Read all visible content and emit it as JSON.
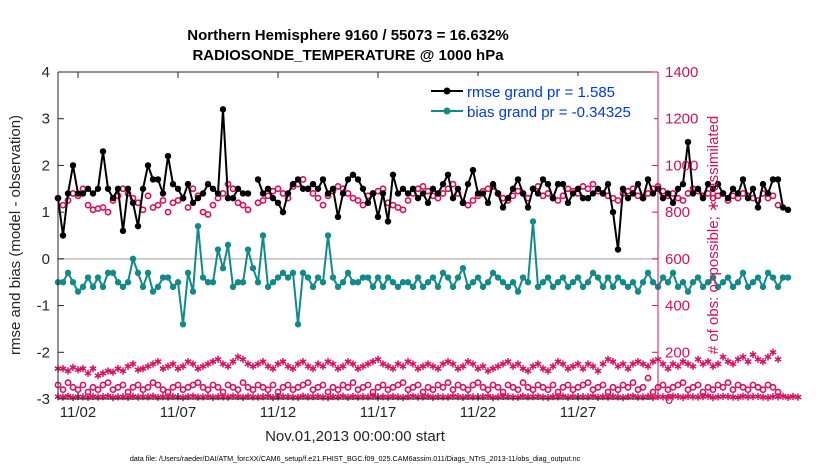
{
  "chart_data": {
    "type": "line",
    "title": "Northern Hemisphere 9160 / 55073 = 16.632%",
    "subtitle": "RADIOSONDE_TEMPERATURE @ 1000 hPa",
    "xlabel": "Nov.01,2013 00:00:00 start",
    "ylabel_left": "rmse and bias (model - observation)",
    "ylabel_right": "# of obs: o=possible; ∗=assimilated",
    "footer": "data file: /Users/raeder/DAI/ATM_forcXX/CAM6_setup/f.e21.FHIST_BGC.f09_025.CAM6assim.011/Diags_NTrS_2013-11/obs_diag_output.nc",
    "x_ticks": [
      {
        "day": 2,
        "label": "11/02"
      },
      {
        "day": 7,
        "label": "11/07"
      },
      {
        "day": 12,
        "label": "11/12"
      },
      {
        "day": 17,
        "label": "11/17"
      },
      {
        "day": 22,
        "label": "11/22"
      },
      {
        "day": 27,
        "label": "11/27"
      }
    ],
    "xlim_days": [
      1.0,
      31.0
    ],
    "y_left_ticks": [
      "-3",
      "-2",
      "-1",
      "0",
      "1",
      "2",
      "3",
      "4"
    ],
    "y_left_lim": [
      -3,
      4
    ],
    "y_right_ticks": [
      "0",
      "200",
      "400",
      "600",
      "800",
      "1000",
      "1200",
      "1400"
    ],
    "y_right_lim": [
      0,
      1400
    ],
    "zero_line": 0,
    "legend": {
      "position": "top-right",
      "entries": [
        {
          "label": "rmse grand pr = 1.585",
          "series": "rmse"
        },
        {
          "label": "bias grand pr = -0.34325",
          "series": "bias"
        }
      ]
    },
    "colors": {
      "rmse": "#000000",
      "bias": "#138a8a",
      "obs": "#d6105f",
      "axis": "#262626",
      "legend_text": "#0039e6",
      "zero": "#bfbfbf"
    },
    "series": [
      {
        "name": "rmse",
        "axis": "left",
        "x_start_day": 1.0,
        "dx_days": 0.25,
        "values": [
          1.3,
          0.5,
          1.4,
          2.0,
          1.4,
          1.4,
          1.5,
          1.4,
          1.5,
          2.3,
          1.5,
          1.3,
          1.5,
          0.6,
          1.5,
          1.2,
          0.7,
          1.5,
          2.0,
          1.7,
          1.7,
          1.4,
          2.2,
          1.6,
          1.5,
          1.3,
          1.6,
          1.2,
          1.3,
          1.4,
          1.6,
          1.5,
          1.4,
          3.2,
          1.3,
          1.3,
          1.5,
          1.4,
          1.4,
          null,
          1.7,
          1.4,
          1.5,
          1.3,
          1.2,
          1.0,
          1.4,
          1.6,
          1.7,
          1.5,
          1.5,
          1.6,
          1.5,
          1.7,
          1.4,
          1.5,
          0.9,
          1.4,
          1.7,
          1.8,
          1.7,
          1.5,
          1.2,
          1.4,
          0.9,
          1.4,
          0.8,
          1.8,
          1.4,
          1.5,
          1.4,
          1.5,
          1.3,
          1.4,
          1.2,
          1.5,
          1.4,
          1.6,
          1.8,
          1.3,
          1.5,
          1.2,
          1.6,
          1.9,
          1.4,
          1.4,
          1.2,
          1.6,
          1.4,
          1.1,
          1.3,
          1.5,
          1.7,
          1.4,
          1.1,
          1.5,
          1.4,
          1.7,
          1.6,
          1.3,
          1.6,
          1.6,
          1.2,
          1.4,
          1.5,
          1.3,
          1.3,
          1.4,
          1.5,
          1.4,
          1.6,
          1.0,
          0.2,
          1.5,
          1.3,
          1.4,
          1.6,
          1.3,
          1.7,
          1.4,
          1.5,
          1.3,
          1.4,
          1.2,
          1.5,
          1.6,
          2.5,
          1.4,
          1.5,
          1.3,
          1.6,
          1.5,
          1.6,
          1.4,
          1.3,
          1.5,
          1.4,
          1.7,
          1.3,
          1.5,
          1.1,
          1.6,
          1.4,
          1.7,
          1.7,
          1.1,
          1.05
        ]
      },
      {
        "name": "bias",
        "axis": "left",
        "x_start_day": 1.0,
        "dx_days": 0.25,
        "values": [
          -0.5,
          -0.5,
          -0.3,
          -0.5,
          -0.7,
          -0.6,
          -0.4,
          -0.6,
          -0.4,
          -0.6,
          -0.3,
          -0.3,
          -0.5,
          -0.6,
          -0.5,
          0.0,
          -0.3,
          -0.6,
          -0.3,
          -0.7,
          -0.6,
          -0.4,
          -0.4,
          -0.6,
          -0.5,
          -1.4,
          -0.3,
          -0.7,
          0.7,
          -0.4,
          -0.5,
          -0.5,
          0.2,
          -0.2,
          0.3,
          -0.6,
          -0.5,
          -0.5,
          0.2,
          -0.2,
          -0.5,
          0.5,
          -0.6,
          -0.5,
          -0.4,
          -0.3,
          -0.4,
          -0.3,
          -1.4,
          -0.3,
          -0.4,
          -0.6,
          -0.4,
          -0.5,
          0.5,
          -0.4,
          -0.6,
          -0.5,
          -0.3,
          -0.5,
          -0.5,
          -0.4,
          -0.4,
          -0.6,
          -0.4,
          -0.6,
          -0.4,
          -0.5,
          -0.6,
          -0.5,
          -0.5,
          -0.6,
          -0.4,
          -0.6,
          -0.5,
          -0.4,
          -0.6,
          -0.3,
          -0.4,
          -0.6,
          -0.4,
          -0.2,
          -0.6,
          -0.5,
          -0.4,
          -0.6,
          -0.5,
          -0.3,
          -0.4,
          -0.5,
          -0.6,
          -0.5,
          -0.7,
          -0.4,
          -0.5,
          0.8,
          -0.6,
          -0.5,
          -0.4,
          -0.6,
          -0.5,
          -0.4,
          -0.6,
          -0.5,
          -0.4,
          -0.6,
          -0.5,
          -0.3,
          -0.4,
          -0.6,
          -0.4,
          -0.6,
          -0.4,
          -0.5,
          -0.6,
          -0.5,
          -0.7,
          -0.5,
          -0.3,
          -0.5,
          -0.6,
          -0.4,
          -0.5,
          -0.3,
          -0.6,
          -0.5,
          -0.7,
          -0.5,
          -0.4,
          -0.6,
          -0.5,
          -0.4,
          -0.6,
          -0.5,
          -0.4,
          -0.6,
          -0.5,
          -0.3,
          -0.6,
          -0.5,
          -0.4,
          -0.6,
          -0.3,
          -0.4,
          -0.6,
          -0.4,
          -0.4
        ]
      },
      {
        "name": "possible",
        "axis": "right",
        "marker": "circle",
        "x_start_day": 1.0,
        "dx_days": 0.25,
        "values": [
          860,
          830,
          850,
          880,
          870,
          900,
          830,
          810,
          815,
          820,
          800,
          850,
          870,
          900,
          880,
          860,
          840,
          810,
          870,
          820,
          830,
          850,
          800,
          840,
          850,
          860,
          820,
          900,
          870,
          800,
          790,
          830,
          860,
          880,
          920,
          900,
          840,
          830,
          810,
          null,
          840,
          850,
          870,
          890,
          900,
          880,
          860,
          910,
          920,
          940,
          900,
          880,
          860,
          830,
          870,
          890,
          910,
          900,
          880,
          860,
          850,
          830,
          870,
          880,
          890,
          900,
          840,
          830,
          820,
          810,
          850,
          880,
          900,
          910,
          890,
          870,
          860,
          880,
          900,
          920,
          880,
          840,
          830,
          850,
          870,
          890,
          900,
          910,
          880,
          860,
          850,
          870,
          890,
          880,
          860,
          900,
          910,
          870,
          880,
          860,
          850,
          870,
          900,
          890,
          880,
          910,
          900,
          920,
          890,
          880,
          870,
          860,
          850,
          880,
          890,
          900,
          870,
          860,
          880,
          900,
          910,
          890,
          870,
          880,
          860,
          850,
          880,
          900,
          890,
          870,
          880,
          860,
          870,
          880,
          850,
          870,
          860,
          880,
          870,
          860,
          850,
          880,
          860,
          870,
          830
        ]
      },
      {
        "name": "assimilated",
        "axis": "right",
        "marker": "asterisk",
        "x_start_day": 1.0,
        "dx_days": 0.25,
        "values": [
          130,
          130,
          120,
          135,
          125,
          130,
          110,
          130,
          100,
          110,
          120,
          115,
          130,
          120,
          140,
          150,
          125,
          130,
          140,
          150,
          160,
          130,
          140,
          150,
          130,
          140,
          160,
          150,
          130,
          140,
          150,
          160,
          170,
          150,
          140,
          160,
          180,
          170,
          150,
          140,
          150,
          160,
          140,
          130,
          150,
          160,
          140,
          130,
          150,
          160,
          140,
          130,
          150,
          140,
          160,
          150,
          130,
          140,
          160,
          150,
          130,
          140,
          150,
          160,
          170,
          150,
          140,
          130,
          150,
          140,
          160,
          150,
          130,
          140,
          150,
          140,
          130,
          150,
          160,
          150,
          130,
          140,
          160,
          150,
          130,
          140,
          120,
          130,
          140,
          150,
          160,
          140,
          150,
          130,
          120,
          140,
          150,
          130,
          120,
          140,
          160,
          150,
          130,
          140,
          150,
          130,
          150,
          140,
          120,
          150,
          170,
          160,
          140,
          150,
          130,
          150,
          160,
          150,
          140,
          160,
          170,
          150,
          130,
          150,
          140,
          160,
          150,
          140,
          170,
          150,
          160,
          140,
          150,
          180,
          160,
          150,
          170,
          180,
          160,
          190,
          170,
          160,
          180,
          200,
          170
        ]
      },
      {
        "name": "possible_low",
        "axis": "right",
        "marker": "circle",
        "x_start_day": 1.0,
        "dx_days": 0.25,
        "values": [
          60,
          40,
          70,
          50,
          40,
          60,
          30,
          50,
          40,
          60,
          70,
          40,
          50,
          60,
          30,
          50,
          60,
          40,
          50,
          70,
          60,
          40,
          30,
          50,
          60,
          40,
          50,
          60,
          70,
          50,
          40,
          60,
          50,
          30,
          60,
          50,
          40,
          70,
          50,
          40,
          60,
          50,
          40,
          60,
          30,
          50,
          60,
          40,
          50,
          60,
          70,
          40,
          50,
          60,
          30,
          50,
          40,
          60,
          50,
          70,
          40,
          50,
          60,
          30,
          50,
          60,
          40,
          50,
          60,
          70,
          40,
          50,
          60,
          30,
          50,
          40,
          60,
          50,
          70,
          40,
          60,
          50,
          40,
          60,
          70,
          50,
          40,
          60,
          50,
          30,
          60,
          50,
          40,
          70,
          50,
          40,
          60,
          50,
          40,
          60,
          30,
          50,
          60,
          40,
          50,
          60,
          70,
          40,
          50,
          60,
          30,
          50,
          40,
          60,
          50,
          70,
          40,
          50,
          90,
          30,
          50,
          60,
          40,
          50,
          60,
          70,
          40,
          50,
          60,
          30,
          50,
          40,
          60,
          50,
          70,
          40,
          60,
          50,
          40,
          60,
          50,
          40,
          60,
          50,
          30
        ]
      },
      {
        "name": "assimilated_low",
        "axis": "right",
        "marker": "asterisk",
        "x_start_day": 1.0,
        "dx_days": 0.25,
        "values": [
          10,
          8,
          12,
          6,
          10,
          9,
          7,
          11,
          8,
          10,
          12,
          6,
          9,
          10,
          7,
          11,
          8,
          10,
          9,
          12,
          7,
          10,
          8,
          11,
          9,
          6,
          10,
          12,
          8,
          9,
          11,
          7,
          10,
          9,
          8,
          12,
          10,
          7,
          11,
          9,
          8,
          10,
          12,
          6,
          9,
          11,
          10,
          8,
          7,
          12,
          9,
          10,
          11,
          8,
          6,
          10,
          9,
          12,
          7,
          11,
          8,
          10,
          9,
          12,
          7,
          10,
          8,
          11,
          9,
          6,
          10,
          12,
          8,
          9,
          11,
          7,
          10,
          9,
          8,
          12,
          10,
          7,
          11,
          9,
          8,
          10,
          12,
          6,
          9,
          11,
          10,
          8,
          7,
          12,
          9,
          10,
          11,
          8,
          6,
          10,
          9,
          12,
          7,
          11,
          8,
          10,
          9,
          12,
          7,
          10,
          8,
          11,
          9,
          6,
          10,
          12,
          8,
          9,
          11,
          7,
          10,
          9,
          8,
          12,
          10,
          7,
          11,
          9,
          8,
          10,
          12,
          6,
          9,
          11,
          10,
          8,
          7,
          12,
          9,
          10,
          11,
          8,
          6,
          10,
          9,
          12,
          7,
          11,
          8
        ]
      }
    ]
  }
}
